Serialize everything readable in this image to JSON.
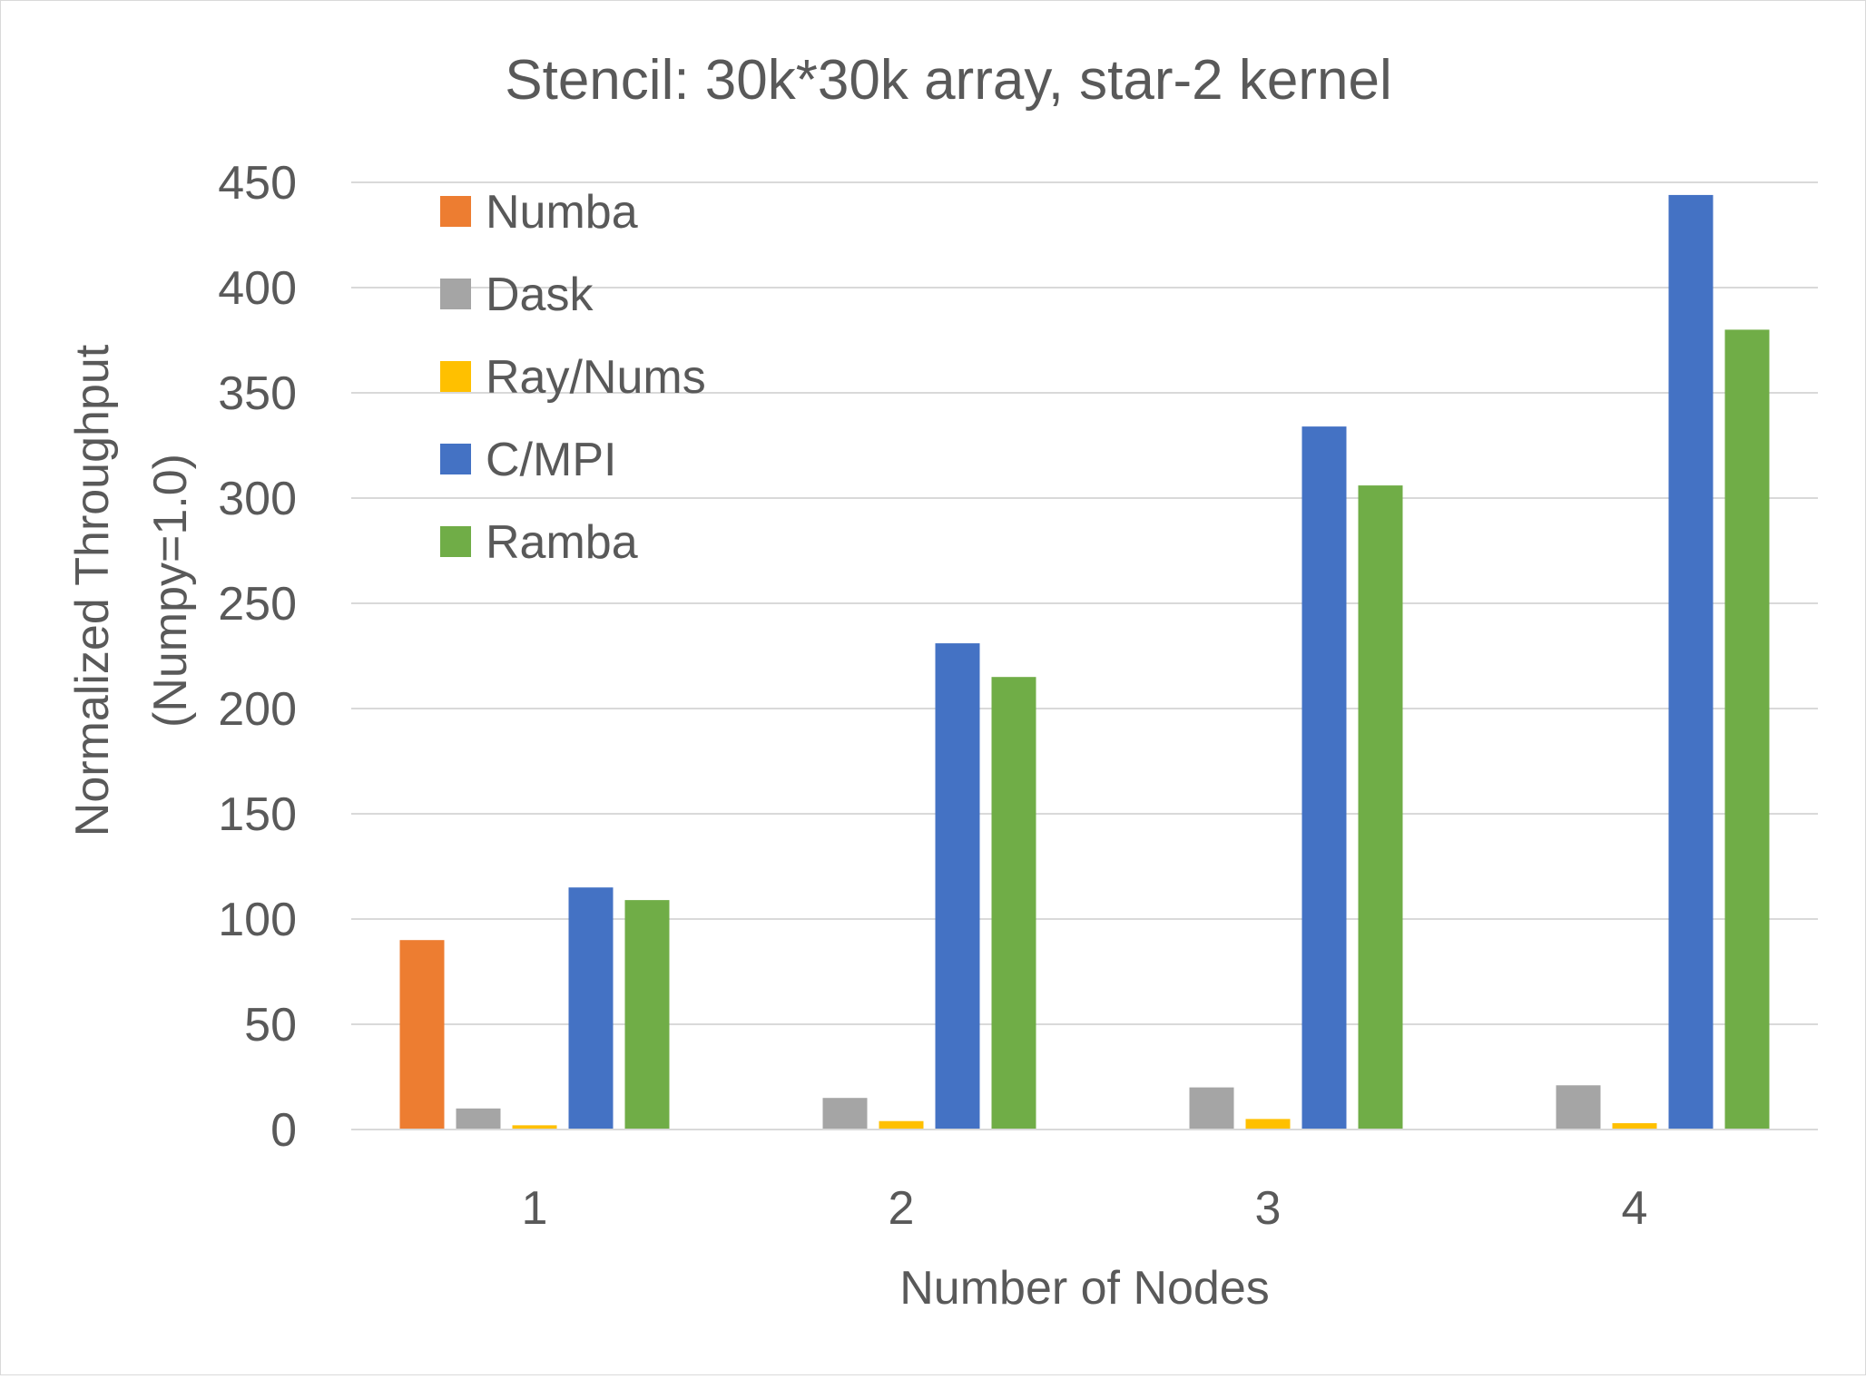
{
  "chart_data": {
    "type": "bar",
    "title": "Stencil: 30k*30k array, star-2 kernel",
    "xlabel": "Number of Nodes",
    "ylabel": [
      "Normalized Throughput",
      "(Numpy=1.0)"
    ],
    "ylim": [
      0,
      450
    ],
    "yticks": [
      0,
      50,
      100,
      150,
      200,
      250,
      300,
      350,
      400,
      450
    ],
    "ytick_labels": [
      "0",
      "50",
      "100",
      "150",
      "200",
      "250",
      "300",
      "350",
      "400",
      "450"
    ],
    "categories": [
      "1",
      "2",
      "3",
      "4"
    ],
    "grid": true,
    "legend_position": "top-left",
    "series": [
      {
        "name": "Numba",
        "color": "#ED7D31",
        "values": [
          90,
          null,
          null,
          null
        ]
      },
      {
        "name": "Dask",
        "color": "#A5A5A5",
        "values": [
          10,
          15,
          20,
          21
        ]
      },
      {
        "name": "Ray/Nums",
        "color": "#FFC000",
        "values": [
          2,
          4,
          5,
          3
        ]
      },
      {
        "name": "C/MPI",
        "color": "#4472C4",
        "values": [
          115,
          231,
          334,
          444
        ]
      },
      {
        "name": "Ramba",
        "color": "#70AD47",
        "values": [
          109,
          215,
          306,
          380
        ]
      }
    ]
  }
}
